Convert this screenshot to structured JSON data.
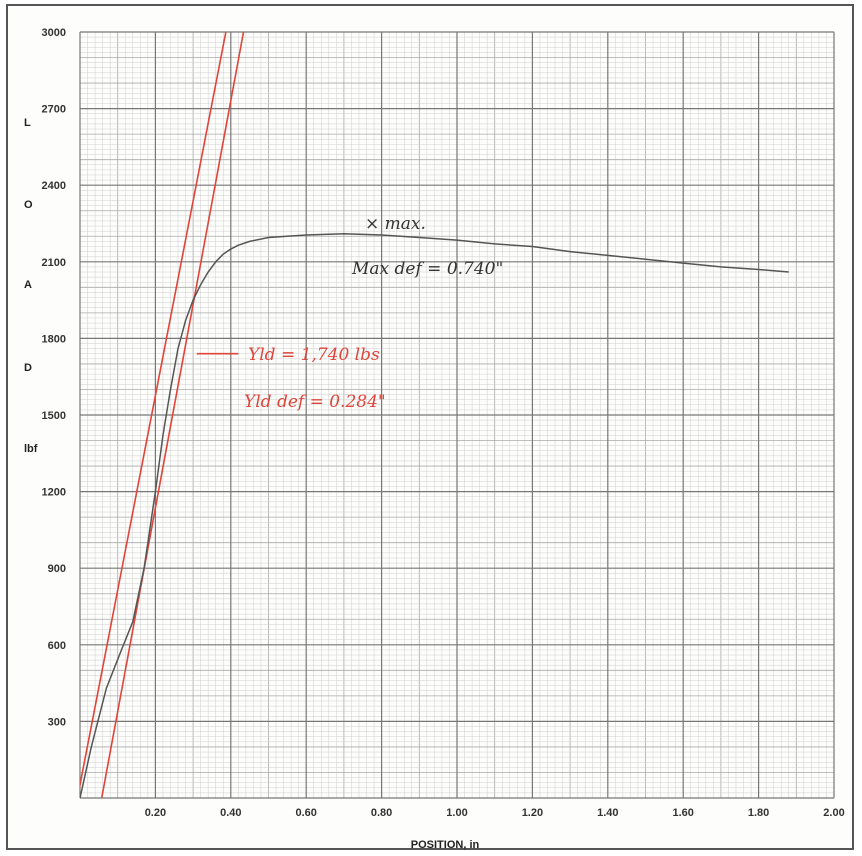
{
  "chart_data": {
    "type": "line",
    "title": "",
    "xlabel": "POSITION, in",
    "ylabel_letters": [
      "L",
      "O",
      "A",
      "D",
      "lbf"
    ],
    "xlim": [
      0,
      2.0
    ],
    "ylim": [
      0,
      3000
    ],
    "x_ticks": [
      "0.20",
      "0.40",
      "0.60",
      "0.80",
      "1.00",
      "1.20",
      "1.40",
      "1.60",
      "1.80",
      "2.00"
    ],
    "y_ticks": [
      "300",
      "600",
      "900",
      "1200",
      "1500",
      "1800",
      "2100",
      "2400",
      "2700",
      "3000"
    ],
    "grid": true,
    "series": [
      {
        "x": [
          0.0,
          0.03,
          0.07,
          0.11,
          0.14,
          0.17,
          0.2,
          0.22,
          0.24,
          0.26,
          0.28,
          0.3,
          0.32,
          0.34,
          0.36,
          0.38,
          0.4,
          0.42,
          0.45,
          0.5,
          0.6,
          0.7,
          0.8,
          0.9,
          1.0,
          1.1,
          1.2,
          1.3,
          1.4,
          1.5,
          1.6,
          1.7,
          1.8,
          1.88
        ],
        "y": [
          0,
          200,
          430,
          580,
          690,
          900,
          1200,
          1420,
          1600,
          1760,
          1870,
          1950,
          2010,
          2060,
          2100,
          2130,
          2150,
          2165,
          2180,
          2195,
          2205,
          2210,
          2205,
          2195,
          2185,
          2170,
          2160,
          2140,
          2125,
          2110,
          2095,
          2080,
          2070,
          2060
        ],
        "color": "#555555"
      }
    ],
    "reference_lines": [
      {
        "x": [
          -0.02,
          0.4
        ],
        "y": [
          -100,
          3100
        ],
        "color": "#e0453a"
      },
      {
        "x": [
          0.045,
          0.44
        ],
        "y": [
          -100,
          3050
        ],
        "color": "#e0453a"
      },
      {
        "x": [
          0.31,
          0.42
        ],
        "y": [
          1740,
          1740
        ],
        "color": "#e0453a"
      }
    ],
    "annotations": [
      {
        "text": "× max.",
        "color": "#333333"
      },
      {
        "text": "Max def = 0.740\"",
        "color": "#333333"
      },
      {
        "text": "Yld = 1,740 lbs",
        "color": "#e0453a"
      },
      {
        "text": "Yld def = 0.284\"",
        "color": "#e0453a"
      }
    ]
  }
}
